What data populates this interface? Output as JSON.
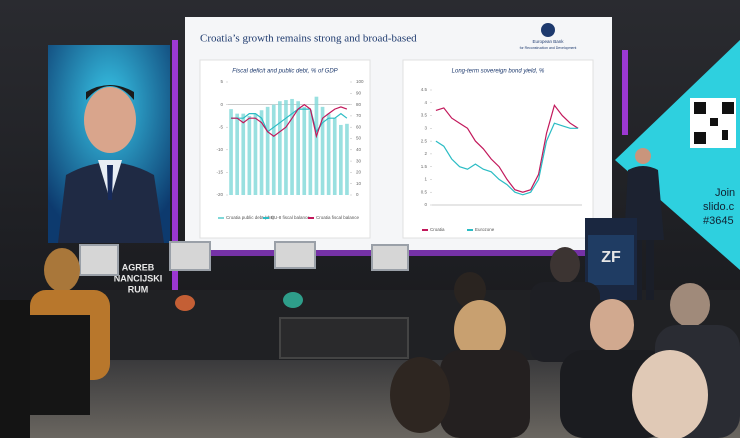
{
  "slide": {
    "title": "Croatia’s growth remains strong and broad-based",
    "logo": [
      "European Bank",
      "for Reconstruction and Development"
    ],
    "charts": [
      {
        "title": "Fiscal deficit and public debt, % of GDP",
        "ylim": [
          -20,
          5
        ],
        "yticks": [
          5,
          0,
          -5,
          -10,
          -15,
          -20
        ],
        "y2lim": [
          0,
          100
        ],
        "y2ticks": [
          100,
          90,
          80,
          70,
          60,
          50,
          40,
          30,
          20,
          10,
          0
        ],
        "series": [
          {
            "name": "Croatia public debt (rhs)",
            "color": "#7fd8d8",
            "axis": "y2",
            "kind": "bar",
            "values": [
              76,
              72,
              72,
              70,
              72,
              75,
              78,
              80,
              83,
              84,
              85,
              83,
              78,
              75,
              87,
              78,
              72,
              68,
              62,
              63
            ]
          },
          {
            "name": "EU-8 fiscal balance",
            "color": "#2bbcc4",
            "kind": "line",
            "values": [
              -3,
              -3,
              -3,
              -2,
              -2,
              -3,
              -6,
              -5,
              -4,
              -3,
              -2,
              -1,
              -1,
              -1,
              -6,
              -4,
              -3,
              -3,
              -2,
              -3
            ]
          },
          {
            "name": "Croatia fiscal balance",
            "color": "#c2185b",
            "kind": "line",
            "values": [
              -3,
              -3,
              -4,
              -3,
              -3,
              -4,
              -6,
              -7,
              -6,
              -5,
              -3,
              -1,
              0,
              -1,
              -7,
              -3,
              -2,
              -1,
              -0.5,
              -1
            ]
          }
        ]
      },
      {
        "title": "Long-term sovereign bond yield, %",
        "ylim": [
          0,
          4.5
        ],
        "yticks": [
          4.5,
          4.0,
          3.5,
          3.0,
          2.5,
          2.0,
          1.5,
          1.0,
          0.5,
          0.0
        ],
        "series": [
          {
            "name": "Croatia",
            "color": "#c2185b",
            "kind": "line",
            "values": [
              3.7,
              3.8,
              3.4,
              3.2,
              3.0,
              2.5,
              2.2,
              1.8,
              1.5,
              1.0,
              0.6,
              0.5,
              0.6,
              1.2,
              2.8,
              3.9,
              3.5,
              3.2,
              3.0
            ]
          },
          {
            "name": "Eurozone",
            "color": "#2bbcc4",
            "kind": "line",
            "values": [
              2.5,
              2.3,
              1.8,
              1.5,
              1.4,
              1.6,
              1.4,
              1.3,
              1.0,
              0.8,
              0.5,
              0.4,
              0.5,
              1.0,
              2.5,
              3.2,
              3.1,
              3.0,
              3.0
            ]
          }
        ]
      }
    ]
  },
  "side_screen": {
    "lines": [
      "AGREB",
      "NANCIJSKI",
      "RUM"
    ]
  },
  "slido": {
    "lines": [
      "Join",
      "slido.c",
      "#3645"
    ]
  },
  "podium": {
    "label": "ZF"
  }
}
